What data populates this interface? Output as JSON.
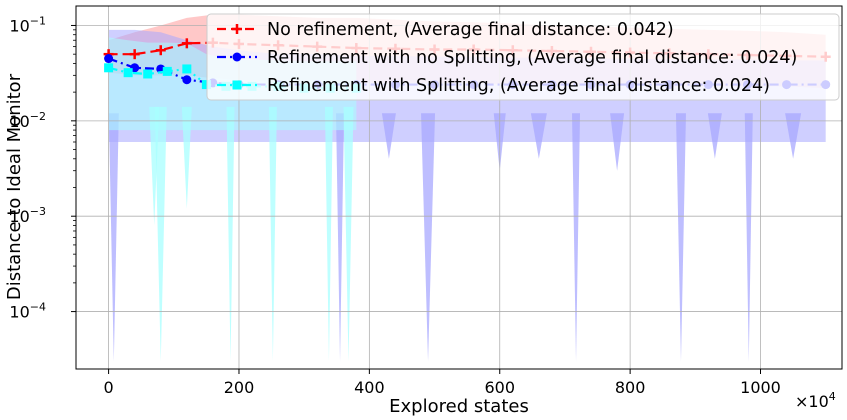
{
  "chart_data": {
    "type": "line",
    "title": "",
    "xlabel": "Explored states",
    "ylabel": "Distance to Ideal Monitor",
    "x_multiplier": "×10",
    "x_multiplier_exp": "4",
    "xlim": [
      -50,
      1125
    ],
    "ylim": [
      2.5e-05,
      0.16
    ],
    "yscale": "log",
    "grid": true,
    "legend_position": "top-right",
    "x_ticks": [
      0,
      200,
      400,
      600,
      800,
      1000
    ],
    "x_tick_labels": [
      "0",
      "200",
      "400",
      "600",
      "800",
      "1000"
    ],
    "y_ticks": [
      0.0001,
      0.001,
      0.01,
      0.1
    ],
    "y_tick_labels": [
      {
        "base": "10",
        "exp": "−4"
      },
      {
        "base": "10",
        "exp": "−3"
      },
      {
        "base": "10",
        "exp": "−2"
      },
      {
        "base": "10",
        "exp": "−1"
      }
    ],
    "series": [
      {
        "name": "No refinement, (Average final distance: 0.042)",
        "color": "#ff0000",
        "band_color": "#ff9a9a",
        "marker": "plus",
        "dash": "9,5",
        "x": [
          0,
          40,
          80,
          120,
          160,
          200,
          260,
          320,
          380,
          440,
          500,
          560,
          620,
          680,
          740,
          800,
          860,
          920,
          980,
          1040,
          1100
        ],
        "y": [
          0.05,
          0.05,
          0.055,
          0.065,
          0.066,
          0.064,
          0.062,
          0.06,
          0.058,
          0.057,
          0.056,
          0.056,
          0.055,
          0.054,
          0.053,
          0.052,
          0.051,
          0.05,
          0.049,
          0.048,
          0.047
        ],
        "band_upper": [
          0.07,
          0.085,
          0.1,
          0.12,
          0.13,
          0.13,
          0.125,
          0.12,
          0.12,
          0.115,
          0.11,
          0.108,
          0.105,
          0.1,
          0.098,
          0.095,
          0.092,
          0.09,
          0.088,
          0.085,
          0.08
        ],
        "band_lower": [
          0.032,
          0.03,
          0.03,
          0.03,
          0.028,
          0.027,
          0.026,
          0.026,
          0.025,
          0.025,
          0.025,
          0.025,
          0.024,
          0.024,
          0.024,
          0.024,
          0.023,
          0.023,
          0.023,
          0.023,
          0.022
        ]
      },
      {
        "name": "Refinement with no Splitting, (Average final distance: 0.024)",
        "color": "#0000ff",
        "band_color": "#a8a8ff",
        "marker": "circle",
        "dash": "9,4,2,4",
        "x": [
          0,
          40,
          80,
          120,
          160,
          200,
          260,
          320,
          380,
          440,
          500,
          560,
          620,
          680,
          740,
          800,
          860,
          920,
          980,
          1040,
          1100
        ],
        "y": [
          0.045,
          0.036,
          0.035,
          0.027,
          0.025,
          0.024,
          0.024,
          0.024,
          0.024,
          0.024,
          0.024,
          0.024,
          0.024,
          0.024,
          0.024,
          0.024,
          0.024,
          0.024,
          0.024,
          0.024,
          0.024
        ],
        "band_upper": [
          0.09,
          0.09,
          0.085,
          0.07,
          0.06,
          0.055,
          0.05,
          0.05,
          0.048,
          0.048,
          0.047,
          0.047,
          0.046,
          0.046,
          0.045,
          0.045,
          0.044,
          0.044,
          0.044,
          0.043,
          0.043
        ],
        "dips": [
          {
            "x": 8,
            "w": 10,
            "y": 3e-05
          },
          {
            "x": 355,
            "w": 8,
            "y": 3e-05
          },
          {
            "x": 490,
            "w": 14,
            "y": 3e-05
          },
          {
            "x": 717,
            "w": 8,
            "y": 3e-05
          },
          {
            "x": 878,
            "w": 10,
            "y": 3e-05
          },
          {
            "x": 982,
            "w": 8,
            "y": 3e-05
          },
          {
            "x": 600,
            "w": 12,
            "y": 0.003
          },
          {
            "x": 430,
            "w": 14,
            "y": 0.004
          },
          {
            "x": 660,
            "w": 16,
            "y": 0.004
          },
          {
            "x": 780,
            "w": 14,
            "y": 0.003
          },
          {
            "x": 930,
            "w": 14,
            "y": 0.004
          },
          {
            "x": 1050,
            "w": 16,
            "y": 0.004
          }
        ]
      },
      {
        "name": "Refinement with Splitting, (Average final distance: 0.024)",
        "color": "#00ffff",
        "band_color": "#a8ffff",
        "marker": "square",
        "dash": "9,4,2,4,2,4",
        "x": [
          0,
          30,
          60,
          90,
          120,
          150,
          180,
          220,
          260,
          300,
          340,
          380
        ],
        "y": [
          0.036,
          0.032,
          0.031,
          0.033,
          0.035,
          0.024,
          0.023,
          0.023,
          0.023,
          0.022,
          0.022,
          0.022
        ],
        "band_upper": [
          0.075,
          0.07,
          0.066,
          0.066,
          0.065,
          0.05,
          0.045,
          0.044,
          0.043,
          0.042,
          0.042,
          0.042
        ],
        "dips": [
          {
            "x": 80,
            "w": 12,
            "y": 3e-05
          },
          {
            "x": 187,
            "w": 8,
            "y": 3e-05
          },
          {
            "x": 252,
            "w": 8,
            "y": 3e-05
          },
          {
            "x": 338,
            "w": 8,
            "y": 3e-05
          },
          {
            "x": 368,
            "w": 10,
            "y": 3e-05
          },
          {
            "x": 70,
            "w": 10,
            "y": 0.0008
          },
          {
            "x": 120,
            "w": 10,
            "y": 0.0012
          }
        ]
      }
    ]
  }
}
